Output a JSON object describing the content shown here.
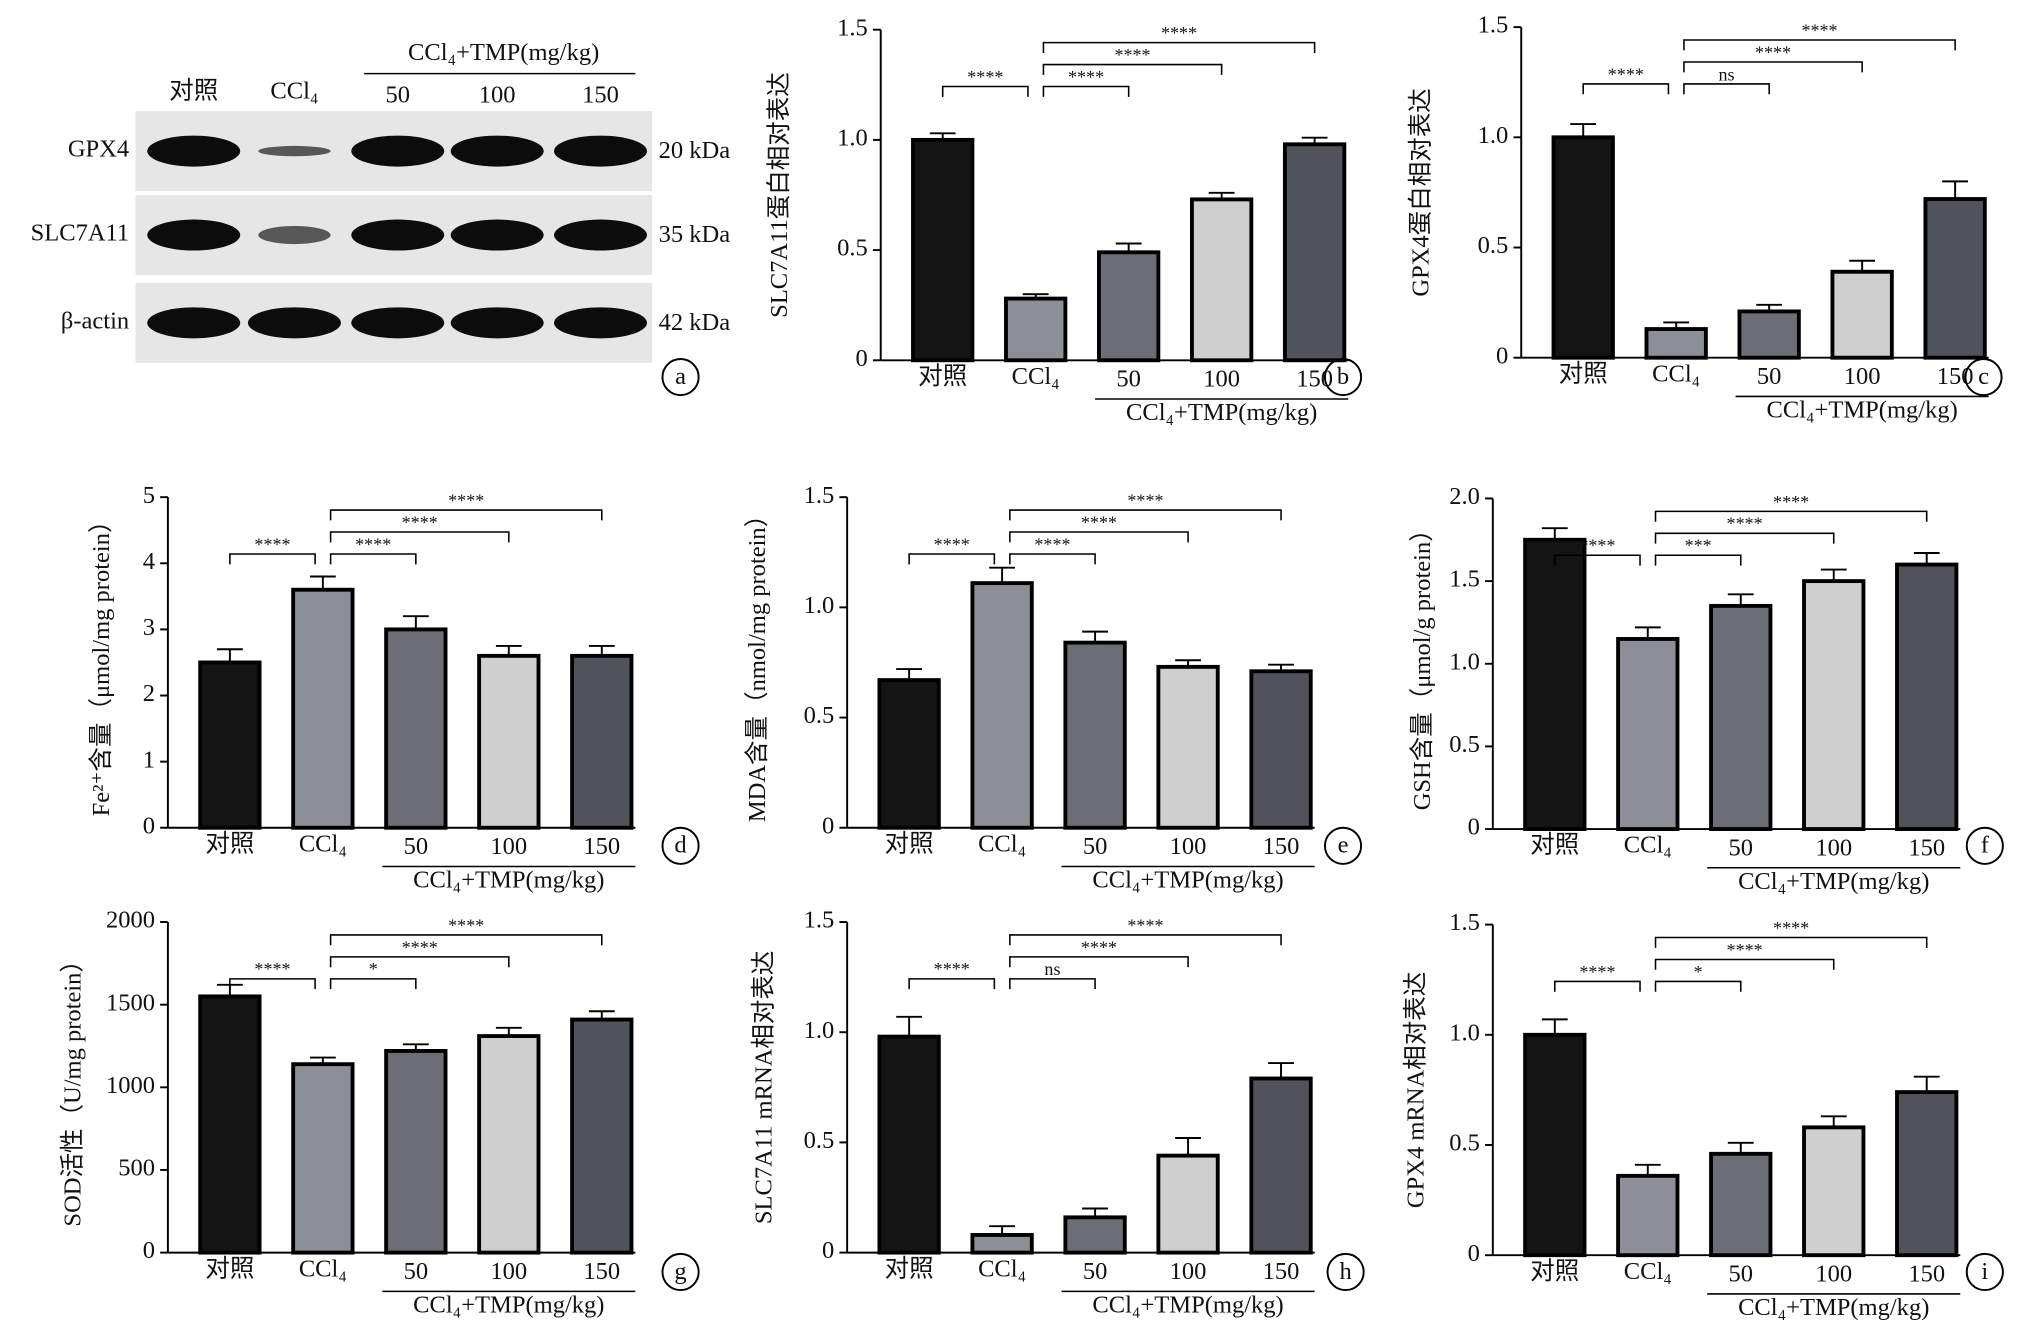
{
  "blot": {
    "panel": "a",
    "lanes": [
      "对照",
      "CCl₄",
      "50",
      "100",
      "150"
    ],
    "group_label": "CCl₄+TMP(mg/kg)",
    "rows": [
      {
        "name": "GPX4",
        "size": "20 kDa"
      },
      {
        "name": "SLC7A11",
        "size": "35 kDa"
      },
      {
        "name": "β-actin",
        "size": "42 kDa"
      }
    ]
  },
  "chart_data": [
    {
      "type": "bar",
      "panel": "b",
      "ylabel": "SLC7A11蛋白相对表达",
      "categories": [
        "对照",
        "CCl₄",
        "50",
        "100",
        "150"
      ],
      "group_label": "CCl₄+TMP(mg/kg)",
      "values": [
        1.0,
        0.28,
        0.49,
        0.73,
        0.98
      ],
      "errors": [
        0.03,
        0.02,
        0.04,
        0.03,
        0.03
      ],
      "colors": [
        "#141414",
        "#8d8f98",
        "#6c6e76",
        "#cfcfcf",
        "#50535b"
      ],
      "ylim": [
        0,
        1.5
      ],
      "yticks": [
        0,
        0.5,
        {
          "value": 1,
          "label": "1.0"
        },
        1.5
      ],
      "significance": [
        {
          "between": [
            "对照",
            "CCl₄"
          ],
          "label": "****"
        },
        {
          "between": [
            "CCl₄",
            "50"
          ],
          "label": "****"
        },
        {
          "between": [
            "CCl₄",
            "100"
          ],
          "label": "****"
        },
        {
          "between": [
            "CCl₄",
            "150"
          ],
          "label": "****"
        }
      ]
    },
    {
      "type": "bar",
      "panel": "c",
      "ylabel": "GPX4蛋白相对表达",
      "categories": [
        "对照",
        "CCl₄",
        "50",
        "100",
        "150"
      ],
      "group_label": "CCl₄+TMP(mg/kg)",
      "values": [
        1.0,
        0.13,
        0.21,
        0.39,
        0.72
      ],
      "errors": [
        0.06,
        0.03,
        0.03,
        0.05,
        0.08
      ],
      "colors": [
        "#141414",
        "#8d8f98",
        "#6c6e76",
        "#cfcfcf",
        "#50535b"
      ],
      "ylim": [
        0,
        1.5
      ],
      "yticks": [
        0,
        0.5,
        {
          "value": 1,
          "label": "1.0"
        },
        1.5
      ],
      "significance": [
        {
          "between": [
            "对照",
            "CCl₄"
          ],
          "label": "****"
        },
        {
          "between": [
            "CCl₄",
            "50"
          ],
          "label": "ns"
        },
        {
          "between": [
            "CCl₄",
            "100"
          ],
          "label": "****"
        },
        {
          "between": [
            "CCl₄",
            "150"
          ],
          "label": "****"
        }
      ]
    },
    {
      "type": "bar",
      "panel": "d",
      "ylabel": "Fe²⁺含量（μmol/mg protein）",
      "categories": [
        "对照",
        "CCl₄",
        "50",
        "100",
        "150"
      ],
      "group_label": "CCl₄+TMP(mg/kg)",
      "values": [
        2.5,
        3.6,
        3.0,
        2.6,
        2.6
      ],
      "errors": [
        0.2,
        0.2,
        0.2,
        0.15,
        0.15
      ],
      "colors": [
        "#141414",
        "#8d8f98",
        "#6c6e76",
        "#cfcfcf",
        "#50535b"
      ],
      "ylim": [
        0,
        5
      ],
      "yticks": [
        0,
        1,
        2,
        3,
        4,
        5
      ],
      "significance": [
        {
          "between": [
            "对照",
            "CCl₄"
          ],
          "label": "****"
        },
        {
          "between": [
            "CCl₄",
            "50"
          ],
          "label": "****"
        },
        {
          "between": [
            "CCl₄",
            "100"
          ],
          "label": "****"
        },
        {
          "between": [
            "CCl₄",
            "150"
          ],
          "label": "****"
        }
      ]
    },
    {
      "type": "bar",
      "panel": "e",
      "ylabel": "MDA含量（nmol/mg protein）",
      "categories": [
        "对照",
        "CCl₄",
        "50",
        "100",
        "150"
      ],
      "group_label": "CCl₄+TMP(mg/kg)",
      "values": [
        0.67,
        1.11,
        0.84,
        0.73,
        0.71
      ],
      "errors": [
        0.05,
        0.07,
        0.05,
        0.03,
        0.03
      ],
      "colors": [
        "#141414",
        "#8d8f98",
        "#6c6e76",
        "#cfcfcf",
        "#50535b"
      ],
      "ylim": [
        0,
        1.5
      ],
      "yticks": [
        0,
        0.5,
        {
          "value": 1,
          "label": "1.0"
        },
        1.5
      ],
      "significance": [
        {
          "between": [
            "对照",
            "CCl₄"
          ],
          "label": "****"
        },
        {
          "between": [
            "CCl₄",
            "50"
          ],
          "label": "****"
        },
        {
          "between": [
            "CCl₄",
            "100"
          ],
          "label": "****"
        },
        {
          "between": [
            "CCl₄",
            "150"
          ],
          "label": "****"
        }
      ]
    },
    {
      "type": "bar",
      "panel": "f",
      "ylabel": "GSH含量（μmol/g protein）",
      "categories": [
        "对照",
        "CCl₄",
        "50",
        "100",
        "150"
      ],
      "group_label": "CCl₄+TMP(mg/kg)",
      "values": [
        1.75,
        1.15,
        1.35,
        1.5,
        1.6
      ],
      "errors": [
        0.07,
        0.07,
        0.07,
        0.07,
        0.07
      ],
      "colors": [
        "#141414",
        "#8d8f98",
        "#6c6e76",
        "#cfcfcf",
        "#50535b"
      ],
      "ylim": [
        0,
        2
      ],
      "yticks": [
        0,
        0.5,
        {
          "value": 1,
          "label": "1.0"
        },
        1.5,
        {
          "value": 2,
          "label": "2.0"
        }
      ],
      "significance": [
        {
          "between": [
            "对照",
            "CCl₄"
          ],
          "label": "****"
        },
        {
          "between": [
            "CCl₄",
            "50"
          ],
          "label": "***"
        },
        {
          "between": [
            "CCl₄",
            "100"
          ],
          "label": "****"
        },
        {
          "between": [
            "CCl₄",
            "150"
          ],
          "label": "****"
        }
      ]
    },
    {
      "type": "bar",
      "panel": "g",
      "ylabel": "SOD活性（U/mg protein）",
      "categories": [
        "对照",
        "CCl₄",
        "50",
        "100",
        "150"
      ],
      "group_label": "CCl₄+TMP(mg/kg)",
      "values": [
        1550,
        1140,
        1220,
        1310,
        1410
      ],
      "errors": [
        70,
        40,
        40,
        50,
        50
      ],
      "colors": [
        "#141414",
        "#8d8f98",
        "#6c6e76",
        "#cfcfcf",
        "#50535b"
      ],
      "ylim": [
        0,
        2000
      ],
      "yticks": [
        0,
        500,
        1000,
        1500,
        2000
      ],
      "significance": [
        {
          "between": [
            "对照",
            "CCl₄"
          ],
          "label": "****"
        },
        {
          "between": [
            "CCl₄",
            "50"
          ],
          "label": "*"
        },
        {
          "between": [
            "CCl₄",
            "100"
          ],
          "label": "****"
        },
        {
          "between": [
            "CCl₄",
            "150"
          ],
          "label": "****"
        }
      ]
    },
    {
      "type": "bar",
      "panel": "h",
      "ylabel": "SLC7A11 mRNA相对表达",
      "categories": [
        "对照",
        "CCl₄",
        "50",
        "100",
        "150"
      ],
      "group_label": "CCl₄+TMP(mg/kg)",
      "values": [
        0.98,
        0.08,
        0.16,
        0.44,
        0.79
      ],
      "errors": [
        0.09,
        0.04,
        0.04,
        0.08,
        0.07
      ],
      "colors": [
        "#141414",
        "#8d8f98",
        "#6c6e76",
        "#cfcfcf",
        "#50535b"
      ],
      "ylim": [
        0,
        1.5
      ],
      "yticks": [
        0,
        0.5,
        {
          "value": 1,
          "label": "1.0"
        },
        1.5
      ],
      "significance": [
        {
          "between": [
            "对照",
            "CCl₄"
          ],
          "label": "****"
        },
        {
          "between": [
            "CCl₄",
            "50"
          ],
          "label": "ns"
        },
        {
          "between": [
            "CCl₄",
            "100"
          ],
          "label": "****"
        },
        {
          "between": [
            "CCl₄",
            "150"
          ],
          "label": "****"
        }
      ]
    },
    {
      "type": "bar",
      "panel": "i",
      "ylabel": "GPX4 mRNA相对表达",
      "categories": [
        "对照",
        "CCl₄",
        "50",
        "100",
        "150"
      ],
      "group_label": "CCl₄+TMP(mg/kg)",
      "values": [
        1.0,
        0.36,
        0.46,
        0.58,
        0.74
      ],
      "errors": [
        0.07,
        0.05,
        0.05,
        0.05,
        0.07
      ],
      "colors": [
        "#141414",
        "#8d8f98",
        "#6c6e76",
        "#cfcfcf",
        "#50535b"
      ],
      "ylim": [
        0,
        1.5
      ],
      "yticks": [
        0,
        0.5,
        {
          "value": 1,
          "label": "1.0"
        },
        1.5
      ],
      "significance": [
        {
          "between": [
            "对照",
            "CCl₄"
          ],
          "label": "****"
        },
        {
          "between": [
            "CCl₄",
            "50"
          ],
          "label": "*"
        },
        {
          "between": [
            "CCl₄",
            "100"
          ],
          "label": "****"
        },
        {
          "between": [
            "CCl₄",
            "150"
          ],
          "label": "****"
        }
      ]
    }
  ]
}
